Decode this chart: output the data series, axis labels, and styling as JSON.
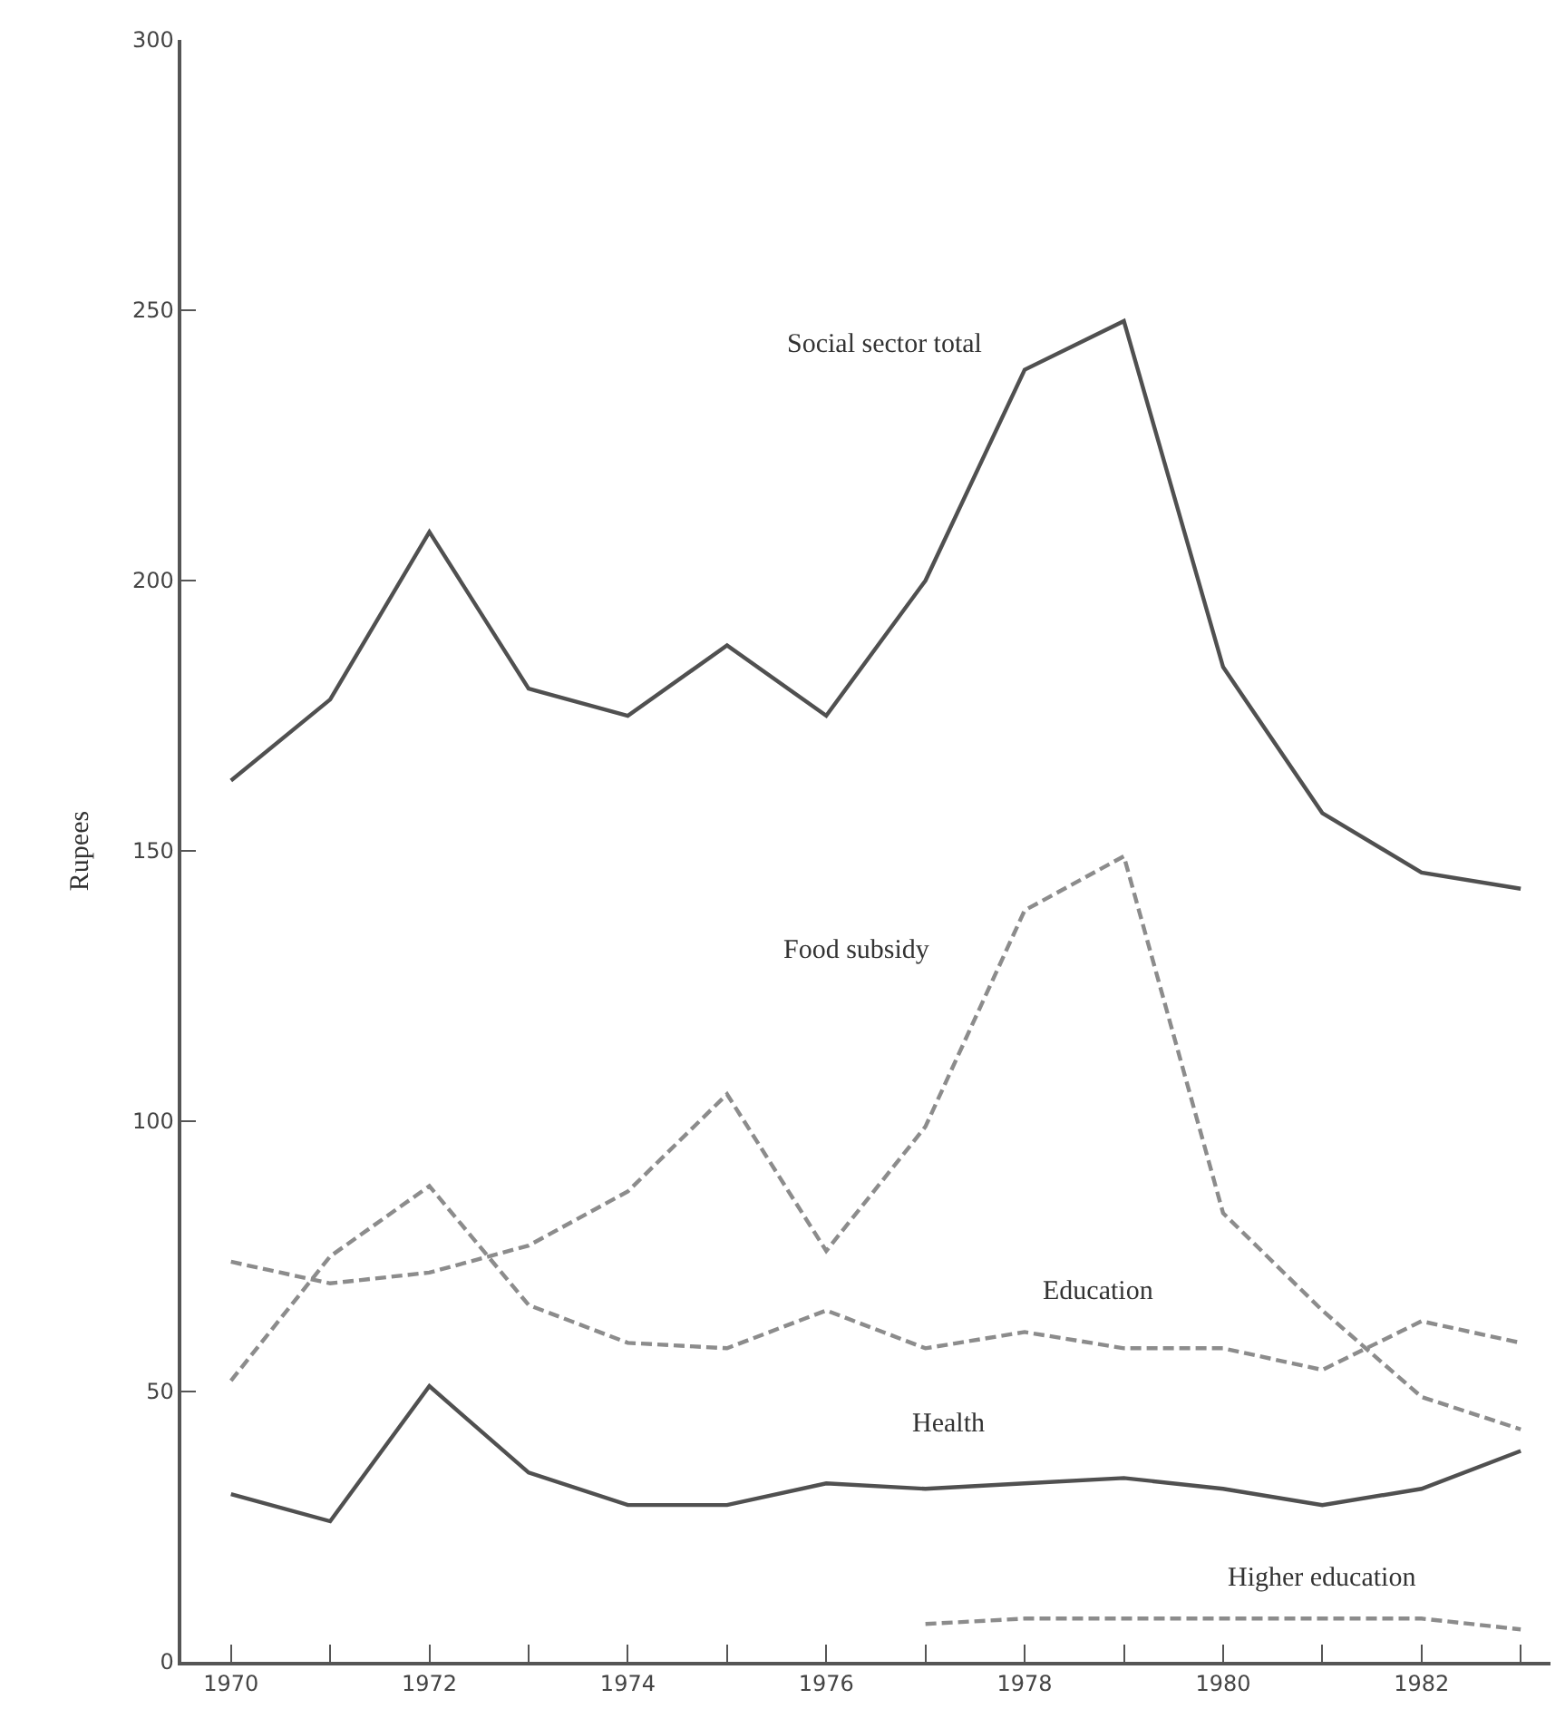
{
  "chart_data": {
    "type": "line",
    "ylabel": "Rupees",
    "x": [
      1970,
      1971,
      1972,
      1973,
      1974,
      1975,
      1976,
      1977,
      1978,
      1979,
      1980,
      1981,
      1982,
      1983
    ],
    "series": [
      {
        "name": "Social sector total",
        "color": "#505050",
        "line_style": "solid",
        "values": [
          163,
          178,
          209,
          180,
          175,
          188,
          175,
          200,
          239,
          248,
          184,
          157,
          146,
          143
        ]
      },
      {
        "name": "Food subsidy",
        "color": "#8c8c8c",
        "line_style": "dashed",
        "values": [
          74,
          70,
          72,
          77,
          87,
          105,
          76,
          99,
          139,
          149,
          83,
          65,
          49,
          43
        ]
      },
      {
        "name": "Education",
        "color": "#8c8c8c",
        "line_style": "dashed",
        "values": [
          52,
          75,
          88,
          66,
          59,
          58,
          65,
          58,
          61,
          58,
          58,
          54,
          63,
          59
        ]
      },
      {
        "name": "Health",
        "color": "#505050",
        "line_style": "solid",
        "values": [
          31,
          26,
          51,
          35,
          29,
          29,
          33,
          32,
          33,
          34,
          32,
          29,
          32,
          39
        ]
      },
      {
        "name": "Higher education",
        "color": "#8c8c8c",
        "line_style": "dashed",
        "x": [
          1977,
          1978,
          1979,
          1980,
          1981,
          1982,
          1983
        ],
        "values": [
          7,
          8,
          8,
          8,
          8,
          8,
          6
        ]
      }
    ],
    "xlim": [
      1969.5,
      1983.3
    ],
    "ylim": [
      0,
      300
    ],
    "xticks": [
      1970,
      {
        "value": 1971,
        "label": null
      },
      1972,
      {
        "value": 1973,
        "label": null
      },
      1974,
      {
        "value": 1975,
        "label": null
      },
      1976,
      {
        "value": 1977,
        "label": null
      },
      1978,
      {
        "value": 1979,
        "label": null
      },
      1980,
      {
        "value": 1981,
        "label": null
      },
      1982,
      {
        "value": 1983,
        "label": null
      }
    ],
    "yticks": [
      0,
      50,
      100,
      150,
      200,
      250,
      300
    ],
    "legend": false,
    "marker": "none"
  }
}
